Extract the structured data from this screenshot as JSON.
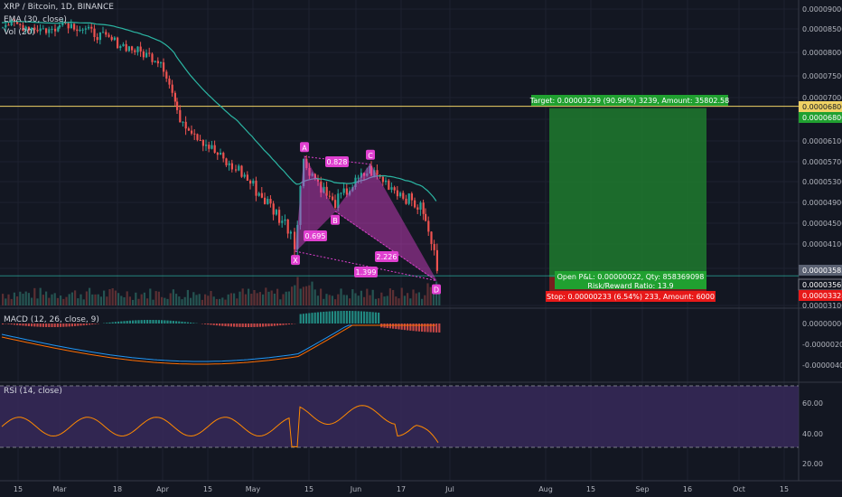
{
  "header": {
    "symbol": "XRP / Bitcoin, 1D, BINANCE",
    "ema": "EMA (30, close)",
    "vol": "Vol (20)",
    "macd": "MACD (12, 26, close, 9)",
    "rsi": "RSI (14, close)"
  },
  "colors": {
    "background": "#131722",
    "up": "#26a69a",
    "down": "#ef5350",
    "ema": "#2bb6a3",
    "pattern": "#e040d0",
    "target_zone": "#1e7a2e",
    "stop_zone": "#8b1d1d",
    "rsi_band": "#3a2a5e",
    "macd_line": "#2196f3",
    "signal_line": "#ff6d00"
  },
  "chart_data": {
    "type": "candlestick",
    "price_axis": {
      "ticks": [
        "0.00009000",
        "0.00008500",
        "0.00008000",
        "0.00007500",
        "0.00007000",
        "0.00006500",
        "0.00006100",
        "0.00005700",
        "0.00005300",
        "0.00004900",
        "0.00004500",
        "0.00004100",
        "0.00003700",
        "0.00003100"
      ],
      "markers": [
        {
          "label": "0.00006800",
          "value": 6.8e-05,
          "color": "#f0d264"
        },
        {
          "label": "0.00006800",
          "value": 6.75e-05,
          "color": "#20a030"
        },
        {
          "label": "0.00003583",
          "value": 3.583e-05,
          "color": "#5a6172"
        },
        {
          "label": "0.00003561",
          "value": 3.561e-05,
          "color": "#131722"
        },
        {
          "label": "0.00003328",
          "value": 3.328e-05,
          "color": "#e81919"
        }
      ]
    },
    "x_axis": {
      "ticks": [
        "15",
        "Mar",
        "18",
        "Apr",
        "15",
        "May",
        "15",
        "Jun",
        "17",
        "Jul",
        "Aug",
        "15",
        "Sep",
        "16",
        "Oct",
        "15"
      ]
    },
    "harmonic_pattern": {
      "points": [
        {
          "label": "X",
          "price": 3.98e-05
        },
        {
          "label": "A",
          "price": 5.8e-05
        },
        {
          "label": "B",
          "price": 4.73e-05
        },
        {
          "label": "C",
          "price": 5.65e-05
        },
        {
          "label": "D",
          "price": 3.5e-05
        }
      ],
      "ratios": [
        "0.828",
        "0.695",
        "2.226",
        "1.399"
      ]
    },
    "position": {
      "target_text": "Target: 0.00003239 (90.96%) 3239, Amount: 35802.58",
      "pnl_text": "Open P&L: 0.00000022, Qty: 858369098",
      "rr_text": "Risk/Reward Ratio: 13.9",
      "stop_text": "Stop: 0.00000233 (6.54%) 233, Amount: 6000",
      "entry": 3.56e-05,
      "target": 6.8e-05,
      "stop": 3.33e-05
    },
    "macd_axis": [
      "0.00000000",
      "-0.00000200",
      "-0.00000400"
    ],
    "rsi_axis": [
      "60.00",
      "40.00",
      "20.00"
    ]
  }
}
